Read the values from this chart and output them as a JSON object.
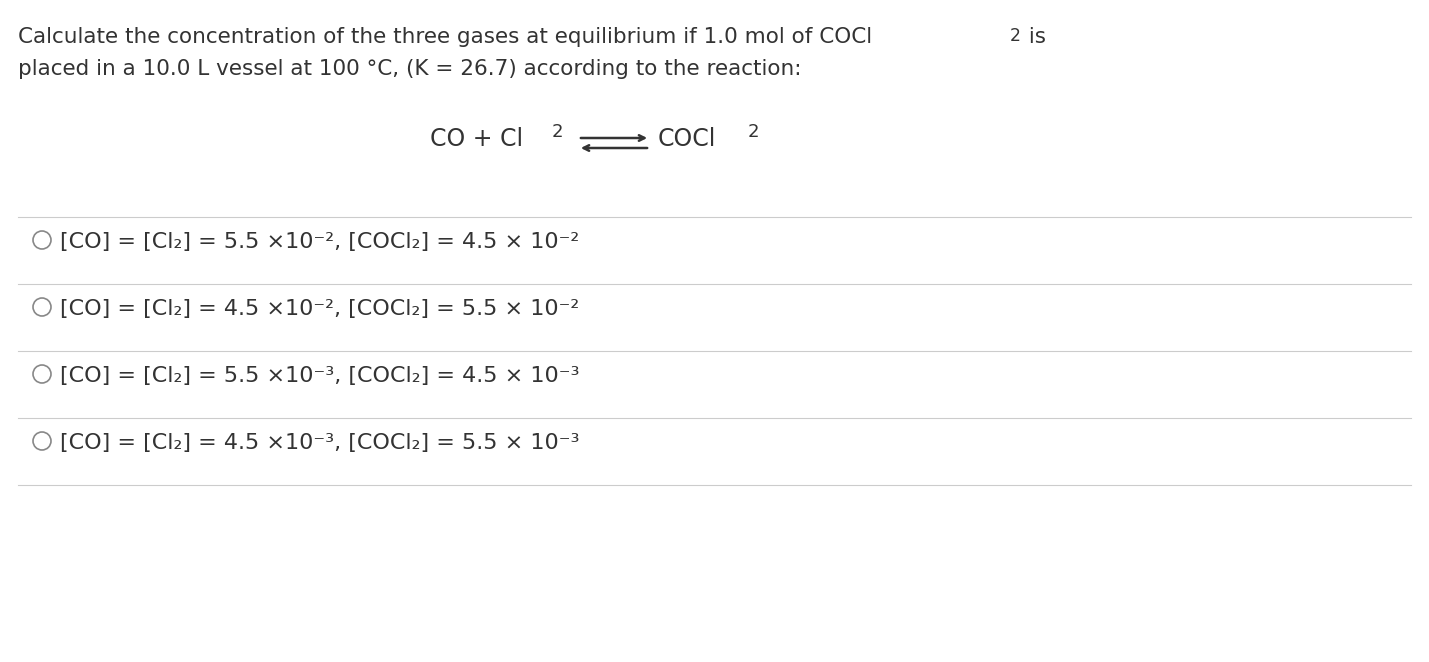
{
  "bg_color": "#ffffff",
  "title_line1": "Calculate the concentration of the three gases at equilibrium if 1.0 mol of COCl",
  "title_line1_end": " is",
  "title_line2": "placed in a 10.0 L vessel at 100 °C, (K = 26.7) according to the reaction:",
  "reaction_left": "CO + Cl",
  "reaction_right": "COCl",
  "options": [
    "[CO] = [Cl₂] = 5.5 ×10⁻², [COCl₂] = 4.5 × 10⁻²",
    "[CO] = [Cl₂] = 4.5 ×10⁻², [COCl₂] = 5.5 × 10⁻²",
    "[CO] = [Cl₂] = 5.5 ×10⁻³, [COCl₂] = 4.5 × 10⁻³",
    "[CO] = [Cl₂] = 4.5 ×10⁻³, [COCl₂] = 5.5 × 10⁻³"
  ],
  "text_color": "#333333",
  "line_color": "#cccccc",
  "font_size_title": 15.5,
  "font_size_reaction": 17,
  "font_size_options": 16,
  "circle_color": "#888888"
}
